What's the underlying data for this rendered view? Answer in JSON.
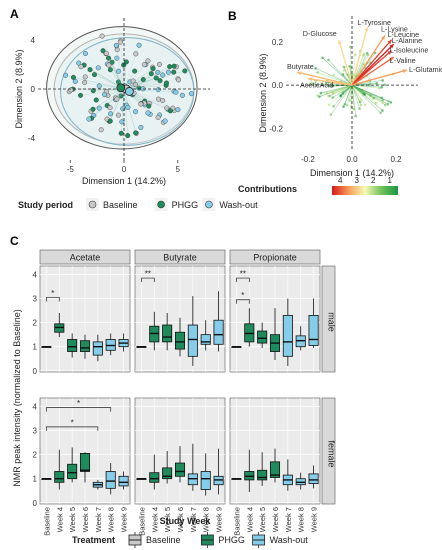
{
  "colors": {
    "baseline": "#c8c8c8",
    "phgg": "#1f8a5b",
    "washout": "#86cdea",
    "panel_bg": "#ebebeb",
    "strip_bg": "#d9d9d9",
    "grid": "#ffffff"
  },
  "panel_labels": {
    "a": "A",
    "b": "B",
    "c": "C"
  },
  "chart_data": [
    {
      "id": "A",
      "type": "scatter",
      "xlabel": "Dimension 1 (14.2%)",
      "ylabel": "Dimension 2 (8.9%)",
      "xlim": [
        -8,
        8
      ],
      "ylim": [
        -5.8,
        5.8
      ],
      "xticks": [
        -5,
        0,
        5
      ],
      "xtick_labels": [
        "-5",
        "0",
        "5"
      ],
      "yticks": [
        -4,
        0,
        4
      ],
      "ytick_labels": [
        "-4",
        "0",
        "4"
      ],
      "ellipses": [
        {
          "series": "Baseline",
          "cx": 0,
          "cy": 0,
          "rx": 6.5,
          "ry": 4.5
        },
        {
          "series": "PHGG",
          "cx": -0.2,
          "cy": 0.1,
          "rx": 7.0,
          "ry": 5.0
        },
        {
          "series": "Wash-out",
          "cx": 0.3,
          "cy": -0.2,
          "rx": 6.2,
          "ry": 4.4
        }
      ],
      "centroids": [
        {
          "series": "Baseline",
          "x": 0.2,
          "y": 0.0
        },
        {
          "series": "PHGG",
          "x": -0.3,
          "y": 0.1
        },
        {
          "series": "Wash-out",
          "x": 0.5,
          "y": -0.2
        }
      ],
      "legend_title": "Study period",
      "legend": [
        "Baseline",
        "PHGG",
        "Wash-out"
      ],
      "legend_position": "bottom"
    },
    {
      "id": "B",
      "type": "biplot",
      "xlabel": "Dimension 1 (14.2%)",
      "ylabel": "Dimension 2 (8.9%)",
      "xlim": [
        -0.3,
        0.3
      ],
      "ylim": [
        -0.3,
        0.32
      ],
      "xticks": [
        -0.2,
        0.0,
        0.2
      ],
      "xtick_labels": [
        "-0.2",
        "0.0",
        "0.2"
      ],
      "yticks": [
        -0.2,
        0.0,
        0.2
      ],
      "ytick_labels": [
        "-0.2",
        "0.0",
        "0.2"
      ],
      "arrows": [
        {
          "label": "D-Glucose",
          "x": -0.06,
          "y": 0.21,
          "contrib": 3
        },
        {
          "label": "L-Tyrosine",
          "x": 0.07,
          "y": 0.27,
          "contrib": 3
        },
        {
          "label": "L-Lysine",
          "x": 0.15,
          "y": 0.23,
          "contrib": 3.5
        },
        {
          "label": "L-Leucine",
          "x": 0.18,
          "y": 0.21,
          "contrib": 4
        },
        {
          "label": "L-Alanine",
          "x": 0.19,
          "y": 0.19,
          "contrib": 4.2
        },
        {
          "label": "L-Isoleucine",
          "x": 0.18,
          "y": 0.16,
          "contrib": 4
        },
        {
          "label": "L-Valine",
          "x": 0.19,
          "y": 0.13,
          "contrib": 3.8
        },
        {
          "label": "L-GlutamicAcid",
          "x": 0.25,
          "y": 0.07,
          "contrib": 3.5
        },
        {
          "label": "Butyrate",
          "x": -0.25,
          "y": 0.06,
          "contrib": 3.3
        },
        {
          "label": "AceticAcid",
          "x": -0.2,
          "y": 0.03,
          "contrib": 3.2
        }
      ],
      "legend_title": "Contributions",
      "legend_ticks": [
        "4",
        "3",
        "2",
        "1"
      ],
      "legend_ticks_values": [
        4,
        3,
        2,
        1
      ],
      "legend_range": [
        0.5,
        4.5
      ]
    },
    {
      "id": "C",
      "type": "box",
      "xlabel": "Study Week",
      "ylabel": "NMR peak intensity (normalized to Baseline)",
      "categories": [
        "Baseline",
        "Week 4",
        "Week 5",
        "Week 6",
        "Week 7",
        "Week 8",
        "Week 9"
      ],
      "treatment_of_category": [
        "Baseline",
        "PHGG",
        "PHGG",
        "PHGG",
        "Wash-out",
        "Wash-out",
        "Wash-out"
      ],
      "ylim": [
        -0.05,
        4.35
      ],
      "yticks": [
        0,
        1,
        2,
        3,
        4
      ],
      "ytick_labels": [
        "0",
        "1",
        "2",
        "3",
        "4"
      ],
      "columns": [
        "Acetate",
        "Butyrate",
        "Propionate"
      ],
      "rows": [
        "male",
        "female"
      ],
      "legend_title": "Treatment",
      "legend": [
        "Baseline",
        "PHGG",
        "Wash-out"
      ],
      "legend_position": "bottom",
      "panels": [
        {
          "row": 0,
          "col": 0,
          "boxes": [
            [
              1,
              1,
              1,
              1,
              1
            ],
            [
              1.4,
              1.6,
              1.8,
              1.95,
              2.4
            ],
            [
              0.55,
              0.8,
              1.0,
              1.3,
              1.55
            ],
            [
              0.5,
              0.8,
              0.95,
              1.25,
              1.5
            ],
            [
              0.4,
              0.65,
              1.0,
              1.2,
              1.5
            ],
            [
              0.65,
              0.85,
              1.05,
              1.3,
              1.55
            ],
            [
              0.8,
              1.0,
              1.15,
              1.3,
              1.55
            ]
          ],
          "brackets": [
            {
              "from": 0,
              "to": 1,
              "y": 3.05,
              "label": "*"
            }
          ]
        },
        {
          "row": 0,
          "col": 1,
          "boxes": [
            [
              1,
              1,
              1,
              1,
              1
            ],
            [
              0.85,
              1.2,
              1.55,
              1.85,
              2.45
            ],
            [
              0.85,
              1.2,
              1.4,
              1.9,
              2.4
            ],
            [
              0.6,
              0.9,
              1.2,
              1.6,
              2.2
            ],
            [
              0.2,
              0.6,
              1.3,
              1.9,
              3.1
            ],
            [
              0.85,
              1.1,
              1.2,
              1.5,
              2.1
            ],
            [
              0.8,
              1.1,
              1.5,
              2.1,
              3.3
            ]
          ],
          "brackets": [
            {
              "from": 0,
              "to": 1,
              "y": 3.85,
              "label": "**"
            }
          ]
        },
        {
          "row": 0,
          "col": 2,
          "boxes": [
            [
              1,
              1,
              1,
              1,
              1
            ],
            [
              1.0,
              1.2,
              1.55,
              1.95,
              2.6
            ],
            [
              0.95,
              1.15,
              1.35,
              1.65,
              2.0
            ],
            [
              0.45,
              0.8,
              1.15,
              1.5,
              2.6
            ],
            [
              0.2,
              0.6,
              1.2,
              2.3,
              3.0
            ],
            [
              0.85,
              1.0,
              1.25,
              1.45,
              1.85
            ],
            [
              0.95,
              1.05,
              1.3,
              2.3,
              3.0
            ]
          ],
          "brackets": [
            {
              "from": 0,
              "to": 1,
              "y": 3.85,
              "label": "**"
            },
            {
              "from": 0,
              "to": 1,
              "y": 2.95,
              "label": "*"
            }
          ]
        },
        {
          "row": 1,
          "col": 0,
          "boxes": [
            [
              1,
              1,
              1,
              1,
              1
            ],
            [
              0.55,
              0.85,
              1.0,
              1.3,
              2.2
            ],
            [
              0.85,
              1.0,
              1.25,
              1.6,
              2.3
            ],
            [
              0.85,
              1.3,
              1.35,
              2.05,
              2.1
            ],
            [
              0.55,
              0.65,
              0.75,
              0.85,
              0.95
            ],
            [
              0.35,
              0.6,
              0.9,
              1.3,
              1.65
            ],
            [
              0.55,
              0.7,
              0.85,
              1.1,
              1.3
            ]
          ],
          "brackets": [
            {
              "from": 0,
              "to": 5,
              "y": 3.95,
              "label": "*"
            },
            {
              "from": 0,
              "to": 4,
              "y": 3.15,
              "label": "*"
            }
          ]
        },
        {
          "row": 1,
          "col": 1,
          "boxes": [
            [
              1,
              1,
              1,
              1,
              1
            ],
            [
              0.55,
              0.85,
              1.0,
              1.25,
              2.0
            ],
            [
              0.8,
              1.0,
              1.1,
              1.45,
              2.15
            ],
            [
              0.85,
              1.1,
              1.3,
              1.65,
              2.35
            ],
            [
              0.5,
              0.75,
              1.0,
              1.2,
              2.45
            ],
            [
              0.3,
              0.55,
              1.0,
              1.3,
              2.05
            ],
            [
              0.35,
              0.75,
              0.95,
              1.1,
              2.25
            ]
          ],
          "brackets": []
        },
        {
          "row": 1,
          "col": 2,
          "boxes": [
            [
              1,
              1,
              1,
              1,
              1
            ],
            [
              0.45,
              0.95,
              1.1,
              1.3,
              2.2
            ],
            [
              0.7,
              0.95,
              1.05,
              1.35,
              2.1
            ],
            [
              0.85,
              1.05,
              1.15,
              1.7,
              2.25
            ],
            [
              0.5,
              0.75,
              0.95,
              1.15,
              1.8
            ],
            [
              0.55,
              0.75,
              0.85,
              1.0,
              1.25
            ],
            [
              0.6,
              0.8,
              0.95,
              1.2,
              1.55
            ]
          ],
          "brackets": []
        }
      ]
    }
  ]
}
